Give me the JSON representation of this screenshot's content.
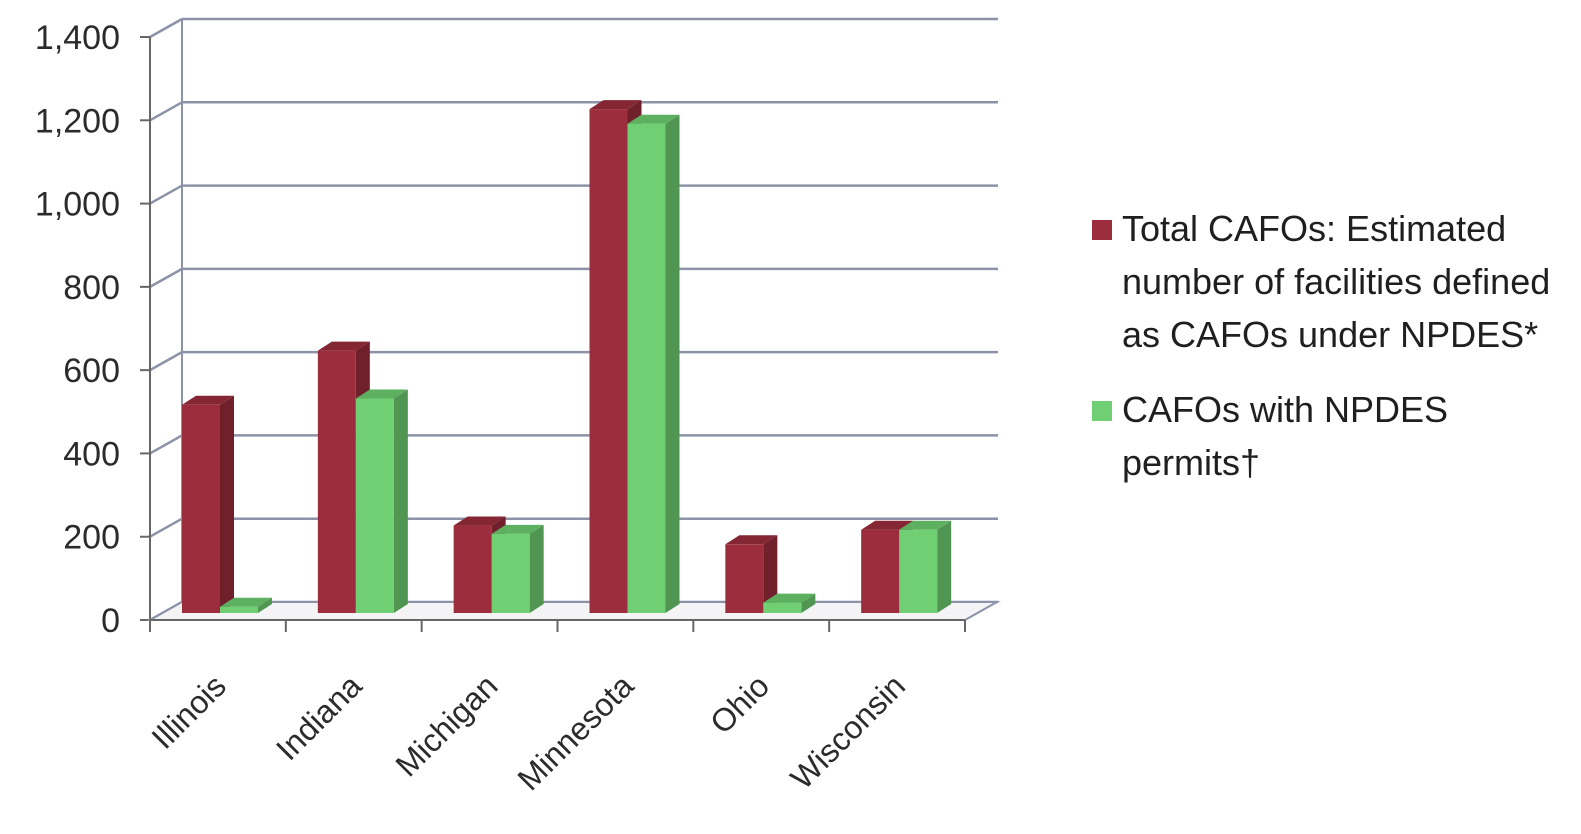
{
  "chart_data": {
    "type": "bar",
    "title": "",
    "xlabel": "",
    "ylabel": "",
    "categories": [
      "Illinois",
      "Indiana",
      "Michigan",
      "Minnesota",
      "Ohio",
      "Wisconsin"
    ],
    "series": [
      {
        "name": "Total CAFOs:  Estimated number of facilities defined as CAFOs under NPDES*",
        "color": "#9b2d3c",
        "values": [
          500,
          630,
          210,
          1210,
          165,
          200
        ]
      },
      {
        "name": "CAFOs with NPDES permits†",
        "color": "#6fcf72",
        "values": [
          15,
          515,
          190,
          1175,
          25,
          200
        ]
      }
    ],
    "ylim": [
      0,
      1400
    ],
    "yticks": [
      "0",
      "200",
      "400",
      "600",
      "800",
      "1,000",
      "1,200",
      "1,400"
    ],
    "grid": true,
    "legend": "right"
  }
}
